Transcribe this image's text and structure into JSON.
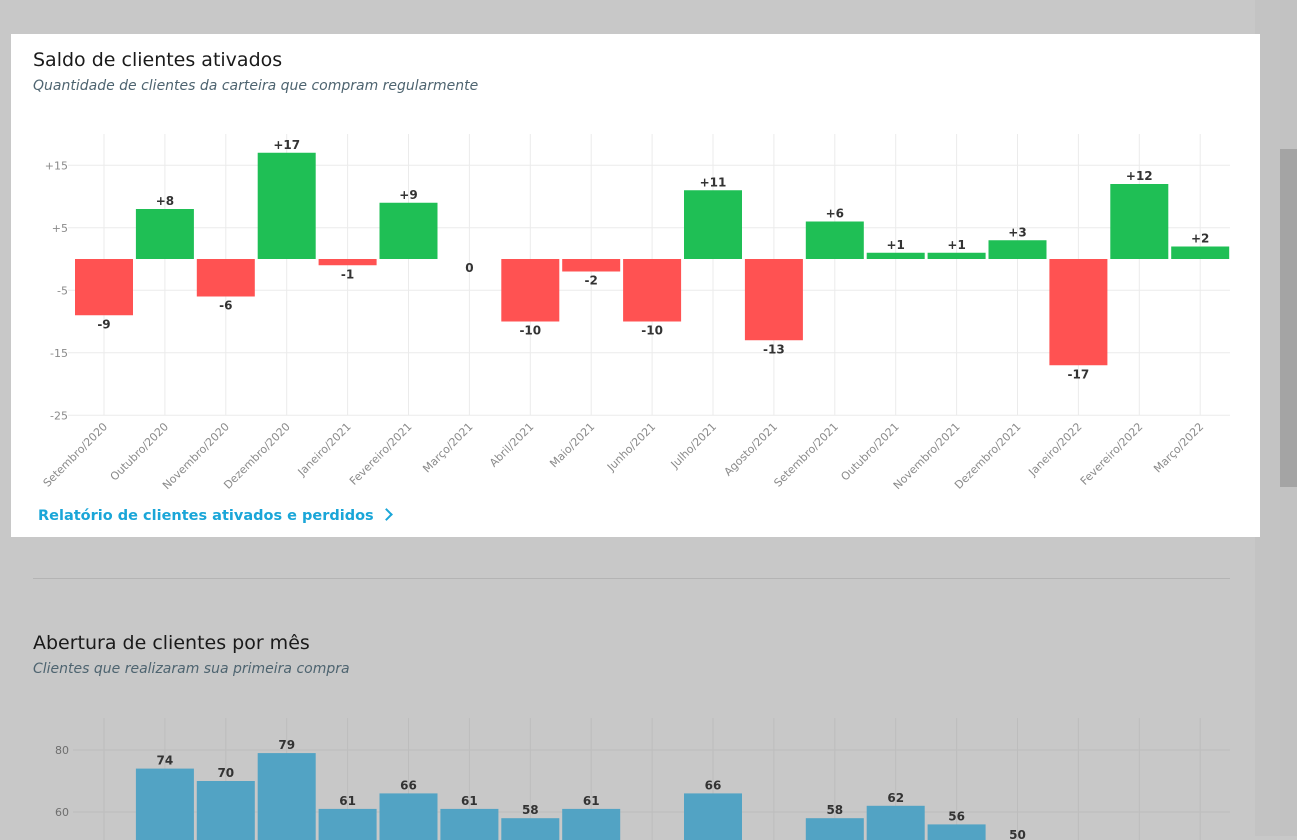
{
  "chart1": {
    "title": "Saldo de clientes ativados",
    "subtitle": "Quantidade de clientes da carteira que compram regularmente",
    "link_label": "Relatório de clientes ativados e perdidos",
    "colors": {
      "positive": "#1fbf55",
      "negative": "#ff5252",
      "zero": "#cccccc"
    }
  },
  "chart2": {
    "title": "Abertura de clientes por mês",
    "subtitle": "Clientes que realizaram sua primeira compra",
    "colors": {
      "bar": "#52a3c4"
    }
  },
  "chart_data": [
    {
      "type": "bar",
      "title": "Saldo de clientes ativados",
      "subtitle": "Quantidade de clientes da carteira que compram regularmente",
      "categories": [
        "Setembro/2020",
        "Outubro/2020",
        "Novembro/2020",
        "Dezembro/2020",
        "Janeiro/2021",
        "Fevereiro/2021",
        "Março/2021",
        "Abril/2021",
        "Maio/2021",
        "Junho/2021",
        "Julho/2021",
        "Agosto/2021",
        "Setembro/2021",
        "Outubro/2021",
        "Novembro/2021",
        "Dezembro/2021",
        "Janeiro/2022",
        "Fevereiro/2022",
        "Março/2022"
      ],
      "values": [
        -9,
        8,
        -6,
        17,
        -1,
        9,
        0,
        -10,
        -2,
        -10,
        11,
        -13,
        6,
        1,
        1,
        3,
        -17,
        12,
        2
      ],
      "data_labels": [
        "-9",
        "+8",
        "-6",
        "+17",
        "-1",
        "+9",
        "0",
        "-10",
        "-2",
        "-10",
        "+11",
        "-13",
        "+6",
        "+1",
        "+1",
        "+3",
        "-17",
        "+12",
        "+2"
      ],
      "yticks": [
        "+15",
        "+5",
        "-5",
        "-15",
        "-25"
      ],
      "ytick_values": [
        15,
        5,
        -5,
        -15,
        -25
      ],
      "ylim": [
        -25,
        20
      ],
      "grid": true,
      "xlabel": "",
      "ylabel": ""
    },
    {
      "type": "bar",
      "title": "Abertura de clientes por mês",
      "subtitle": "Clientes que realizaram sua primeira compra",
      "values": [
        74,
        70,
        79,
        61,
        66,
        61,
        58,
        61,
        66,
        58,
        62,
        56,
        50
      ],
      "slots": [
        1,
        2,
        3,
        4,
        5,
        6,
        7,
        8,
        10,
        12,
        13,
        14,
        15
      ],
      "yticks": [
        "80",
        "60"
      ],
      "ytick_values": [
        80,
        60
      ],
      "grid": true
    }
  ]
}
